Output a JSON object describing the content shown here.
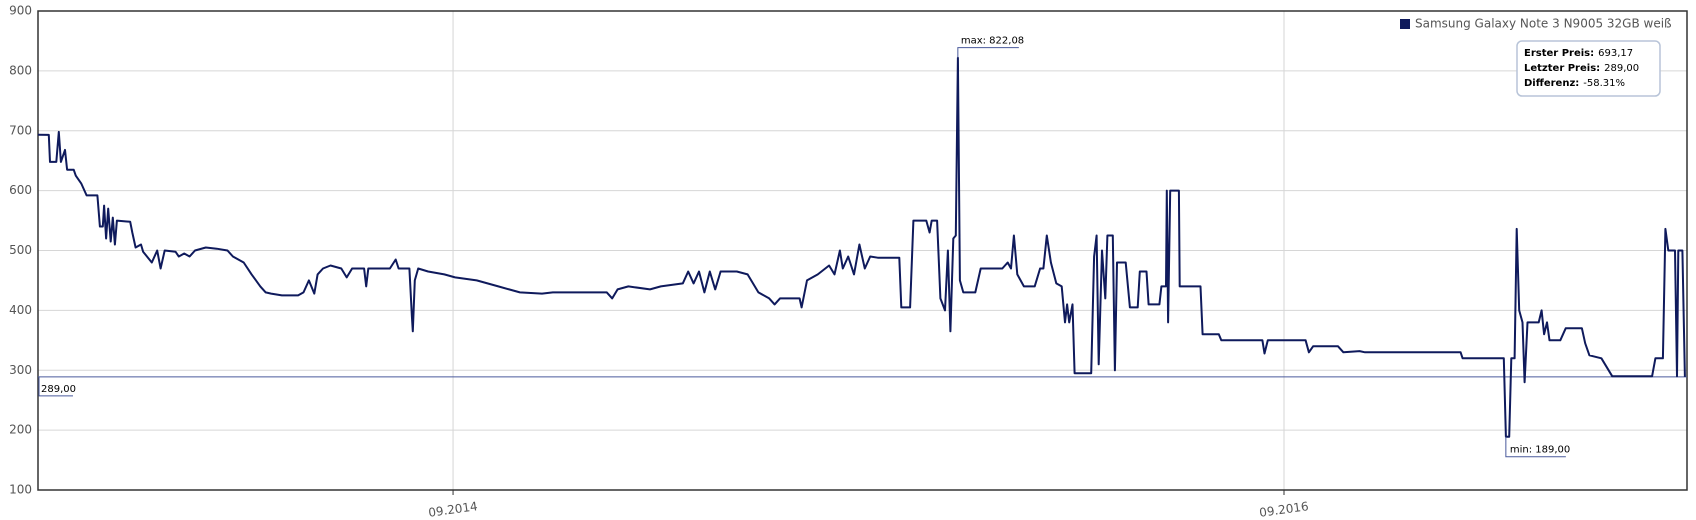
{
  "chart_data": {
    "type": "line",
    "x": [
      2013.668,
      2013.694,
      2013.697,
      2013.712,
      2013.718,
      2013.723,
      2013.733,
      2013.738,
      2013.754,
      2013.759,
      2013.772,
      2013.785,
      2013.811,
      2013.817,
      2013.824,
      2013.827,
      2013.832,
      2013.837,
      2013.843,
      2013.848,
      2013.853,
      2013.858,
      2013.89,
      2013.895,
      2013.903,
      2013.916,
      2013.921,
      2013.942,
      2013.955,
      2013.963,
      2013.973,
      2013.999,
      2014.007,
      2014.02,
      2014.033,
      2014.046,
      2014.072,
      2014.098,
      2014.124,
      2014.137,
      2014.163,
      2014.182,
      2014.203,
      2014.216,
      2014.229,
      2014.255,
      2014.294,
      2014.307,
      2014.32,
      2014.333,
      2014.341,
      2014.354,
      2014.372,
      2014.398,
      2014.411,
      2014.424,
      2014.453,
      2014.458,
      2014.463,
      2014.489,
      2014.515,
      2014.529,
      2014.536,
      2014.562,
      2014.568,
      2014.57,
      2014.575,
      2014.583,
      2014.607,
      2014.646,
      2014.672,
      2014.724,
      2014.776,
      2014.802,
      2014.828,
      2014.881,
      2014.907,
      2014.985,
      2015.037,
      2015.05,
      2015.063,
      2015.089,
      2015.141,
      2015.167,
      2015.22,
      2015.233,
      2015.246,
      2015.259,
      2015.272,
      2015.285,
      2015.298,
      2015.311,
      2015.35,
      2015.376,
      2015.402,
      2015.428,
      2015.441,
      2015.454,
      2015.501,
      2015.506,
      2015.519,
      2015.545,
      2015.572,
      2015.585,
      2015.598,
      2015.605,
      2015.618,
      2015.632,
      2015.645,
      2015.658,
      2015.671,
      2015.689,
      2015.741,
      2015.746,
      2015.767,
      2015.775,
      2015.806,
      2015.814,
      2015.819,
      2015.832,
      2015.84,
      2015.851,
      2015.858,
      2015.864,
      2015.871,
      2015.877,
      2015.882,
      2015.887,
      2015.895,
      2015.924,
      2015.937,
      2015.989,
      2016.002,
      2016.01,
      2016.017,
      2016.025,
      2016.041,
      2016.067,
      2016.08,
      2016.088,
      2016.096,
      2016.106,
      2016.119,
      2016.132,
      2016.14,
      2016.145,
      2016.15,
      2016.158,
      2016.163,
      2016.203,
      2016.21,
      2016.216,
      2016.221,
      2016.229,
      2016.237,
      2016.242,
      2016.255,
      2016.26,
      2016.265,
      2016.286,
      2016.296,
      2016.315,
      2016.32,
      2016.336,
      2016.341,
      2016.367,
      2016.372,
      2016.383,
      2016.385,
      2016.388,
      2016.393,
      2016.414,
      2016.416,
      2016.466,
      2016.471,
      2016.51,
      2016.516,
      2016.615,
      2016.62,
      2016.628,
      2016.719,
      2016.727,
      2016.737,
      2016.797,
      2016.81,
      2016.849,
      2016.862,
      2016.967,
      2017.092,
      2017.097,
      2017.196,
      2017.201,
      2017.209,
      2017.214,
      2017.222,
      2017.227,
      2017.233,
      2017.241,
      2017.246,
      2017.253,
      2017.28,
      2017.287,
      2017.293,
      2017.3,
      2017.306,
      2017.332,
      2017.345,
      2017.384,
      2017.392,
      2017.402,
      2017.431,
      2017.457,
      2017.553,
      2017.561,
      2017.579,
      2017.585,
      2017.592,
      2017.608,
      2017.613,
      2017.616,
      2017.626,
      2017.632
    ],
    "series": [
      {
        "name": "Samsung Galaxy Note 3 N9005 32GB weiß",
        "color": "#0f1a5c",
        "values": [
          693.17,
          693,
          648,
          648,
          698,
          648,
          668,
          635,
          635,
          625,
          612,
          592,
          592,
          540,
          540,
          575,
          520,
          570,
          515,
          555,
          510,
          550,
          548,
          530,
          505,
          510,
          498,
          480,
          500,
          470,
          500,
          498,
          490,
          495,
          490,
          500,
          505,
          503,
          500,
          490,
          480,
          460,
          440,
          430,
          428,
          425,
          425,
          430,
          450,
          428,
          460,
          470,
          475,
          470,
          455,
          470,
          470,
          440,
          470,
          470,
          470,
          485,
          470,
          470,
          390,
          365,
          450,
          470,
          465,
          460,
          455,
          450,
          440,
          435,
          430,
          428,
          430,
          430,
          430,
          420,
          435,
          440,
          435,
          440,
          445,
          465,
          445,
          465,
          430,
          465,
          435,
          465,
          465,
          460,
          430,
          420,
          410,
          420,
          420,
          405,
          450,
          460,
          475,
          460,
          500,
          470,
          490,
          460,
          510,
          470,
          490,
          488,
          488,
          405,
          405,
          550,
          550,
          530,
          550,
          550,
          420,
          400,
          500,
          365,
          520,
          525,
          822.08,
          450,
          430,
          430,
          470,
          470,
          480,
          470,
          525,
          460,
          440,
          440,
          470,
          470,
          525,
          480,
          445,
          440,
          380,
          410,
          380,
          410,
          295,
          295,
          490,
          525,
          310,
          500,
          420,
          525,
          525,
          300,
          480,
          480,
          405,
          405,
          465,
          465,
          410,
          410,
          440,
          440,
          600,
          380,
          600,
          600,
          440,
          440,
          360,
          360,
          350,
          350,
          328,
          350,
          350,
          330,
          340,
          340,
          330,
          332,
          330,
          330,
          330,
          320,
          320,
          189,
          189,
          320,
          320,
          536,
          400,
          380,
          280,
          380,
          380,
          400,
          360,
          380,
          350,
          350,
          370,
          370,
          345,
          325,
          320,
          290,
          290,
          320,
          320,
          536,
          500,
          500,
          290,
          500,
          500,
          289
        ]
      }
    ],
    "xlim": [
      2013.668,
      2017.637
    ],
    "xticks": [
      {
        "value": 2014.667,
        "label": "09.2014"
      },
      {
        "value": 2016.667,
        "label": "09.2016"
      }
    ],
    "ylim": [
      100,
      900
    ],
    "yticks": [
      100,
      200,
      300,
      400,
      500,
      600,
      700,
      800,
      900
    ],
    "grid": true,
    "legend": "top-right",
    "reference_line": {
      "value": 289,
      "label": "289,00",
      "color": "#4a5a9c"
    },
    "max_label": "max: 822,08",
    "min_label": "min: 189,00",
    "info_box": [
      {
        "label": "Erster Preis:",
        "value": "693,17"
      },
      {
        "label": "Letzter Preis:",
        "value": "289,00"
      },
      {
        "label": "Differenz:",
        "value": "-58.31%"
      }
    ]
  }
}
